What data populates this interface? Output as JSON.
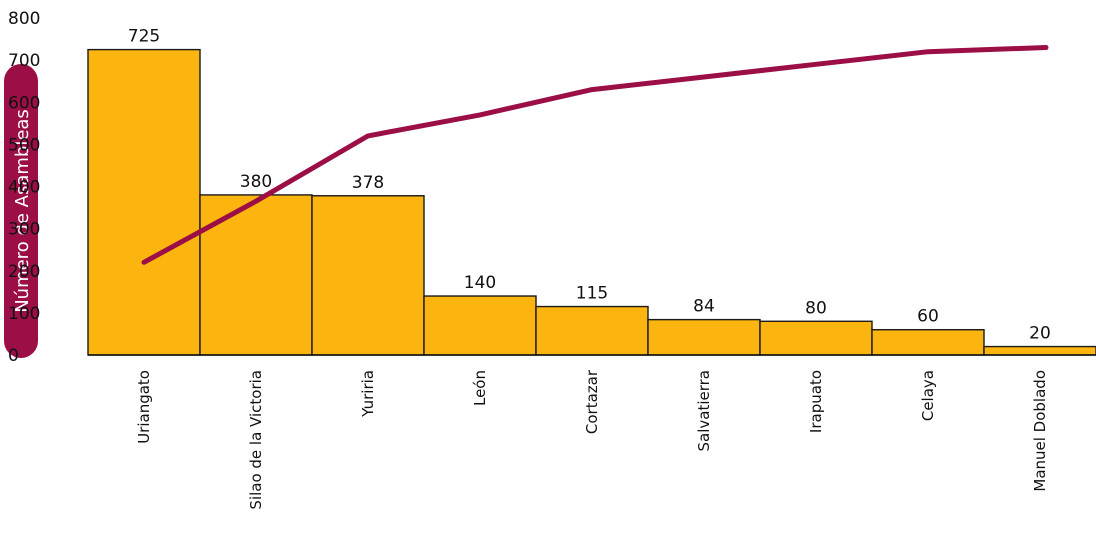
{
  "chart_data": {
    "type": "bar",
    "categories": [
      "Uriangato",
      "Silao de la Victoria",
      "Yuriria",
      "León",
      "Cortazar",
      "Salvatierra",
      "Irapuato",
      "Celaya",
      "Manuel Doblado"
    ],
    "values": [
      725,
      380,
      378,
      140,
      115,
      84,
      80,
      60,
      20
    ],
    "line_values": [
      220,
      365,
      520,
      570,
      630,
      660,
      690,
      720,
      730
    ],
    "ylabel": "Número de Asambleas",
    "ylim": [
      0,
      800
    ],
    "yticks": [
      0,
      100,
      200,
      300,
      400,
      500,
      600,
      700,
      800
    ],
    "grid": false,
    "colors": {
      "bar_fill": "#FCB50F",
      "bar_stroke": "#1a1a1a",
      "line": "#9B0E46",
      "ylabel_bg": "#9B0E46",
      "axis": "#111111"
    }
  }
}
